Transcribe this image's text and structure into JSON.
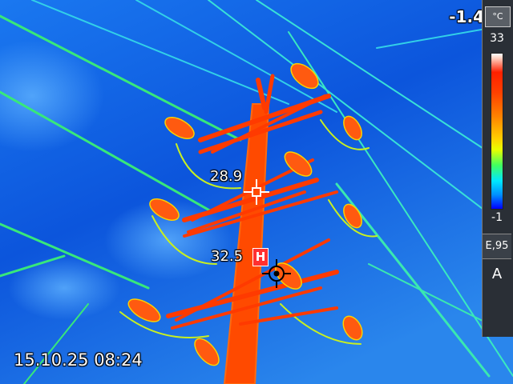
{
  "app": {
    "max_temp": "-1.4",
    "unit_label": "°C",
    "scale_max": "33",
    "scale_min": "-1",
    "emissivity": "E,95",
    "mode": "A",
    "timestamp": "15.10.25 08:24"
  },
  "markers": {
    "cold_value": "28.9",
    "hot_value": "32.5",
    "hot_flag": "H"
  },
  "colors": {
    "sky": "#0b4fd8",
    "hot": "#ff3a00",
    "warm": "#ffe000",
    "wire": "#3cff70",
    "marker_hot": "#ff3030"
  },
  "icons": [
    "crosshair-icon",
    "hotspot-crosshair-icon"
  ]
}
